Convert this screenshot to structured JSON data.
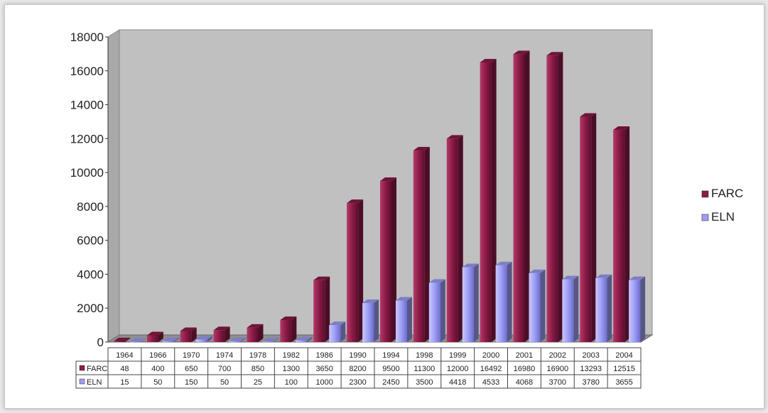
{
  "chart_data": {
    "type": "bar",
    "categories": [
      "1964",
      "1966",
      "1970",
      "1974",
      "1978",
      "1982",
      "1986",
      "1990",
      "1994",
      "1998",
      "1999",
      "2000",
      "2001",
      "2002",
      "2003",
      "2004"
    ],
    "series": [
      {
        "name": "FARC",
        "values": [
          48,
          400,
          650,
          700,
          850,
          1300,
          3650,
          8200,
          9500,
          11300,
          12000,
          16492,
          16980,
          16900,
          13293,
          12515
        ],
        "table_values": [
          "48",
          "400",
          "650",
          "700",
          "850",
          "1300",
          "3650",
          "8200",
          "9500",
          "11300",
          "12000",
          "16492",
          "16980",
          "16900",
          "13293",
          "12515"
        ],
        "color": "#8b1a46"
      },
      {
        "name": "ELN",
        "values": [
          15,
          50,
          150,
          50,
          25,
          100,
          1000,
          2300,
          2450,
          3500,
          4418,
          4533,
          4068,
          3700,
          3780,
          3655
        ],
        "table_values": [
          "15",
          "50",
          "150",
          "50",
          "25",
          "100",
          "1000",
          "2300",
          "2450",
          "3500",
          "4418",
          "4533",
          "4068",
          "3700",
          "3780",
          "3655"
        ],
        "color": "#9e9ef5"
      }
    ],
    "yticks": [
      "0",
      "2000",
      "4000",
      "6000",
      "8000",
      "10000",
      "12000",
      "14000",
      "16000",
      "18000"
    ],
    "ylim": [
      0,
      18000
    ],
    "legend_position": "right",
    "has_data_table": true,
    "plot_background": "#c0c0c0"
  }
}
